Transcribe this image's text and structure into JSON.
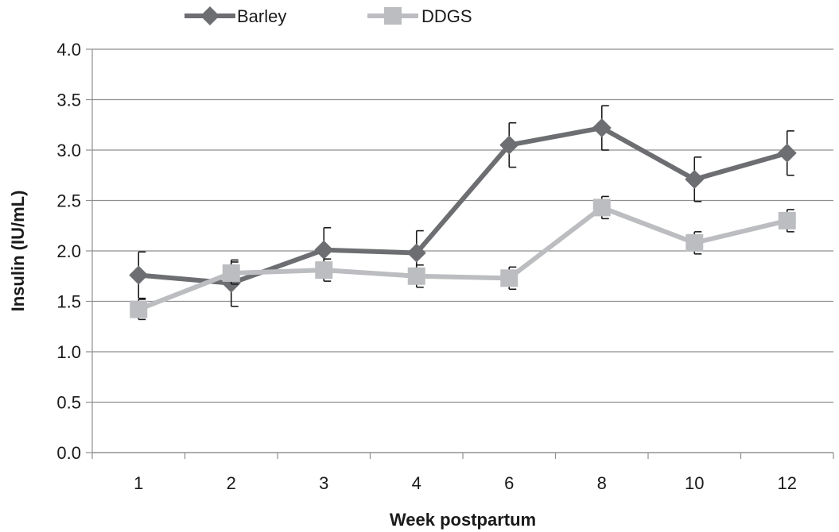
{
  "chart_data": {
    "type": "line",
    "title": "",
    "xlabel": "Week postpartum",
    "ylabel": "Insulin (IU/mL)",
    "categories": [
      "1",
      "2",
      "3",
      "4",
      "6",
      "8",
      "10",
      "12"
    ],
    "y_ticks": [
      "0.0",
      "0.5",
      "1.0",
      "1.5",
      "2.0",
      "2.5",
      "3.0",
      "3.5",
      "4.0"
    ],
    "ylim": [
      0,
      4
    ],
    "grid": "horizontal",
    "legend_position": "top",
    "series": [
      {
        "name": "Barley",
        "marker": "diamond",
        "color": "#6d6e71",
        "values": [
          1.76,
          1.68,
          2.01,
          1.98,
          3.05,
          3.22,
          2.71,
          2.97
        ],
        "errors": [
          0.23,
          0.23,
          0.22,
          0.22,
          0.22,
          0.22,
          0.22,
          0.22
        ]
      },
      {
        "name": "DDGS",
        "marker": "square",
        "color": "#bcbdc0",
        "values": [
          1.42,
          1.78,
          1.81,
          1.75,
          1.73,
          2.43,
          2.08,
          2.3
        ],
        "errors": [
          0.1,
          0.11,
          0.11,
          0.11,
          0.11,
          0.11,
          0.11,
          0.11
        ]
      }
    ]
  }
}
